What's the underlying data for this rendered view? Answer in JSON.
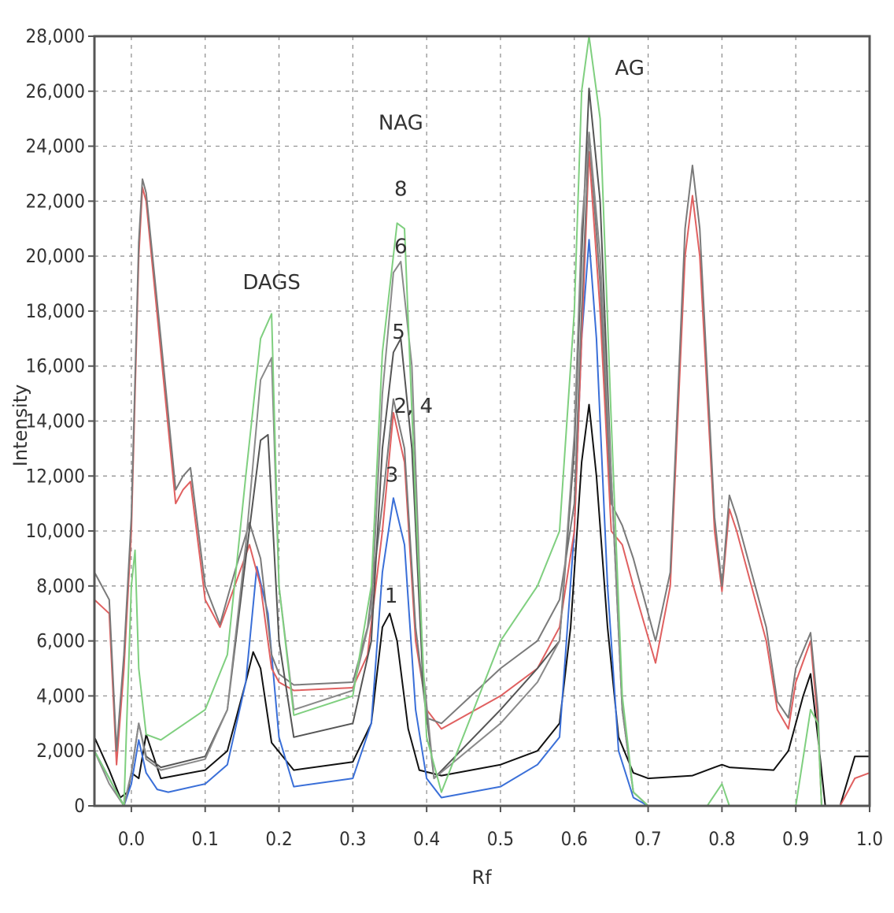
{
  "chart_data": {
    "type": "line",
    "title": "",
    "xlabel": "Rf",
    "ylabel": "Intensity",
    "xlim": [
      -0.05,
      1.0
    ],
    "ylim": [
      0,
      28000
    ],
    "grid": true,
    "x_ticks": [
      "0.0",
      "0.1",
      "0.2",
      "0.3",
      "0.4",
      "0.5",
      "0.6",
      "0.7",
      "0.8",
      "0.9",
      "1.0"
    ],
    "x_tick_values": [
      0.0,
      0.1,
      0.2,
      0.3,
      0.4,
      0.5,
      0.6,
      0.7,
      0.8,
      0.9,
      1.0
    ],
    "y_ticks": [
      "0",
      "2,000",
      "4,000",
      "6,000",
      "8,000",
      "10,000",
      "12,000",
      "14,000",
      "16,000",
      "18,000",
      "20,000",
      "22,000",
      "24,000",
      "26,000",
      "28,000"
    ],
    "y_tick_values": [
      0,
      2000,
      4000,
      6000,
      8000,
      10000,
      12000,
      14000,
      16000,
      18000,
      20000,
      22000,
      24000,
      26000,
      28000
    ],
    "annotations": [
      {
        "text": "DAGS",
        "x": 0.19,
        "y": 18800
      },
      {
        "text": "NAG",
        "x": 0.365,
        "y": 24600
      },
      {
        "text": "AG",
        "x": 0.675,
        "y": 26600
      },
      {
        "text": "8",
        "x": 0.365,
        "y": 22200
      },
      {
        "text": "6",
        "x": 0.365,
        "y": 20100
      },
      {
        "text": "5",
        "x": 0.362,
        "y": 17000
      },
      {
        "text": "2, 4",
        "x": 0.382,
        "y": 14300
      },
      {
        "text": "3",
        "x": 0.353,
        "y": 11800
      },
      {
        "text": "1",
        "x": 0.352,
        "y": 7400
      }
    ],
    "series": [
      {
        "color": "#111111",
        "x": [
          -0.05,
          -0.03,
          -0.015,
          -0.005,
          0.0,
          0.01,
          0.02,
          0.04,
          0.1,
          0.13,
          0.155,
          0.165,
          0.175,
          0.19,
          0.22,
          0.3,
          0.325,
          0.34,
          0.35,
          0.36,
          0.375,
          0.39,
          0.42,
          0.5,
          0.55,
          0.58,
          0.595,
          0.61,
          0.62,
          0.63,
          0.645,
          0.66,
          0.68,
          0.7,
          0.76,
          0.79,
          0.8,
          0.81,
          0.87,
          0.89,
          0.91,
          0.92,
          0.93,
          0.94,
          0.96,
          0.98,
          1.0
        ],
        "y": [
          2500,
          1300,
          300,
          500,
          1200,
          1000,
          2600,
          1000,
          1300,
          2000,
          4500,
          5600,
          5000,
          2300,
          1300,
          1600,
          3000,
          6500,
          7000,
          6000,
          2800,
          1300,
          1100,
          1500,
          2000,
          3000,
          6500,
          12500,
          14600,
          12000,
          6500,
          2500,
          1200,
          1000,
          1100,
          1400,
          1500,
          1400,
          1300,
          2000,
          4000,
          4800,
          2500,
          0,
          0,
          1800,
          1800
        ]
      },
      {
        "color": "#3a6fd8",
        "x": [
          -0.05,
          -0.03,
          -0.01,
          0.0,
          0.01,
          0.02,
          0.035,
          0.05,
          0.1,
          0.13,
          0.155,
          0.17,
          0.185,
          0.2,
          0.22,
          0.3,
          0.325,
          0.34,
          0.355,
          0.37,
          0.385,
          0.4,
          0.42,
          0.5,
          0.55,
          0.58,
          0.6,
          0.61,
          0.62,
          0.63,
          0.645,
          0.66,
          0.68,
          0.7
        ],
        "y": [
          2000,
          1000,
          0,
          800,
          2400,
          1200,
          600,
          500,
          800,
          1500,
          4500,
          8700,
          7000,
          2500,
          700,
          1000,
          3000,
          8500,
          11200,
          9500,
          3500,
          1000,
          300,
          700,
          1500,
          2500,
          10000,
          17000,
          20600,
          17000,
          8000,
          2000,
          300,
          0
        ]
      },
      {
        "color": "#e06060",
        "x": [
          -0.05,
          -0.03,
          -0.02,
          -0.01,
          0.0,
          0.01,
          0.015,
          0.02,
          0.04,
          0.06,
          0.07,
          0.08,
          0.1,
          0.12,
          0.14,
          0.16,
          0.175,
          0.19,
          0.2,
          0.22,
          0.3,
          0.32,
          0.34,
          0.355,
          0.37,
          0.385,
          0.4,
          0.42,
          0.5,
          0.55,
          0.58,
          0.6,
          0.61,
          0.62,
          0.635,
          0.65,
          0.665,
          0.68,
          0.71,
          0.73,
          0.75,
          0.76,
          0.77,
          0.79,
          0.8,
          0.81,
          0.82,
          0.86,
          0.875,
          0.89,
          0.9,
          0.92,
          0.93,
          0.935,
          0.96,
          0.98,
          1.0
        ],
        "y": [
          7500,
          7000,
          1500,
          5000,
          10000,
          20000,
          22500,
          22000,
          16500,
          11000,
          11500,
          11800,
          7500,
          6500,
          8000,
          9500,
          8000,
          5000,
          4500,
          4200,
          4300,
          5500,
          10000,
          14300,
          12500,
          6000,
          3500,
          2800,
          4000,
          5000,
          6500,
          10000,
          17000,
          23800,
          18000,
          10000,
          9500,
          8000,
          5200,
          8000,
          20000,
          22200,
          20000,
          10000,
          7800,
          10800,
          10000,
          6000,
          3500,
          2800,
          4500,
          6000,
          3000,
          0,
          0,
          1000,
          1200
        ]
      },
      {
        "color": "#7a7a7a",
        "x": [
          -0.05,
          -0.03,
          -0.02,
          -0.01,
          0.0,
          0.01,
          0.015,
          0.02,
          0.04,
          0.06,
          0.07,
          0.08,
          0.1,
          0.12,
          0.14,
          0.16,
          0.175,
          0.19,
          0.2,
          0.22,
          0.3,
          0.32,
          0.34,
          0.355,
          0.37,
          0.385,
          0.4,
          0.42,
          0.5,
          0.55,
          0.58,
          0.6,
          0.61,
          0.62,
          0.635,
          0.65,
          0.665,
          0.68,
          0.71,
          0.73,
          0.75,
          0.76,
          0.77,
          0.79,
          0.8,
          0.81,
          0.82,
          0.86,
          0.875,
          0.89,
          0.9,
          0.92,
          0.93,
          0.935
        ],
        "y": [
          8500,
          7500,
          2000,
          5500,
          10500,
          20500,
          22800,
          22300,
          17000,
          11500,
          12000,
          12300,
          8000,
          6600,
          8500,
          10300,
          9000,
          5500,
          4800,
          4400,
          4500,
          6500,
          11000,
          14800,
          13000,
          6500,
          3200,
          3000,
          5000,
          6000,
          7500,
          11000,
          18000,
          24500,
          19000,
          11000,
          10200,
          9000,
          6000,
          8500,
          21000,
          23300,
          21000,
          10500,
          8000,
          11300,
          10500,
          6500,
          3800,
          3200,
          5000,
          6300,
          3500,
          0
        ]
      },
      {
        "color": "#555555",
        "x": [
          -0.05,
          -0.03,
          -0.01,
          0.0,
          0.01,
          0.02,
          0.04,
          0.1,
          0.13,
          0.155,
          0.175,
          0.185,
          0.2,
          0.22,
          0.3,
          0.325,
          0.34,
          0.355,
          0.365,
          0.38,
          0.395,
          0.41,
          0.5,
          0.55,
          0.58,
          0.6,
          0.61,
          0.62,
          0.635,
          0.65,
          0.665,
          0.68,
          0.7
        ],
        "y": [
          2000,
          1000,
          0,
          1200,
          3000,
          1800,
          1400,
          1800,
          3500,
          9000,
          13300,
          13500,
          6000,
          2500,
          3000,
          6000,
          13000,
          16500,
          17000,
          13000,
          4500,
          1000,
          3500,
          5000,
          6000,
          13000,
          20000,
          26100,
          22000,
          12000,
          3500,
          500,
          0
        ]
      },
      {
        "color": "#8a8a8a",
        "x": [
          -0.05,
          -0.03,
          -0.01,
          0.0,
          0.01,
          0.02,
          0.04,
          0.1,
          0.13,
          0.155,
          0.175,
          0.19,
          0.2,
          0.22,
          0.3,
          0.325,
          0.34,
          0.355,
          0.365,
          0.38,
          0.395,
          0.41,
          0.5,
          0.55,
          0.58,
          0.6,
          0.61,
          0.62,
          0.635,
          0.65,
          0.665,
          0.68,
          0.7
        ],
        "y": [
          2000,
          800,
          0,
          1200,
          3000,
          1700,
          1300,
          1700,
          3500,
          9500,
          15500,
          16300,
          8000,
          3500,
          4200,
          7000,
          15000,
          19400,
          19800,
          16000,
          5000,
          1000,
          3000,
          4500,
          6000,
          13500,
          21000,
          24500,
          20000,
          12000,
          3500,
          500,
          0
        ]
      },
      {
        "color": "#7fcf7f",
        "x": [
          -0.05,
          -0.03,
          -0.01,
          0.0,
          0.005,
          0.01,
          0.02,
          0.04,
          0.1,
          0.13,
          0.155,
          0.175,
          0.19,
          0.2,
          0.22,
          0.3,
          0.325,
          0.34,
          0.36,
          0.37,
          0.385,
          0.4,
          0.42,
          0.5,
          0.55,
          0.58,
          0.6,
          0.61,
          0.62,
          0.635,
          0.65,
          0.665,
          0.68,
          0.7,
          0.78,
          0.8,
          0.81,
          0.9,
          0.92,
          0.93,
          0.935
        ],
        "y": [
          2000,
          1000,
          0,
          8000,
          9300,
          5000,
          2600,
          2400,
          3500,
          5500,
          12000,
          17000,
          17900,
          8000,
          3300,
          4000,
          8000,
          16500,
          21200,
          21000,
          11000,
          2500,
          500,
          6000,
          8000,
          10000,
          18000,
          26000,
          28000,
          25000,
          14000,
          4000,
          500,
          0,
          0,
          800,
          0,
          0,
          3500,
          3000,
          0
        ]
      }
    ]
  }
}
